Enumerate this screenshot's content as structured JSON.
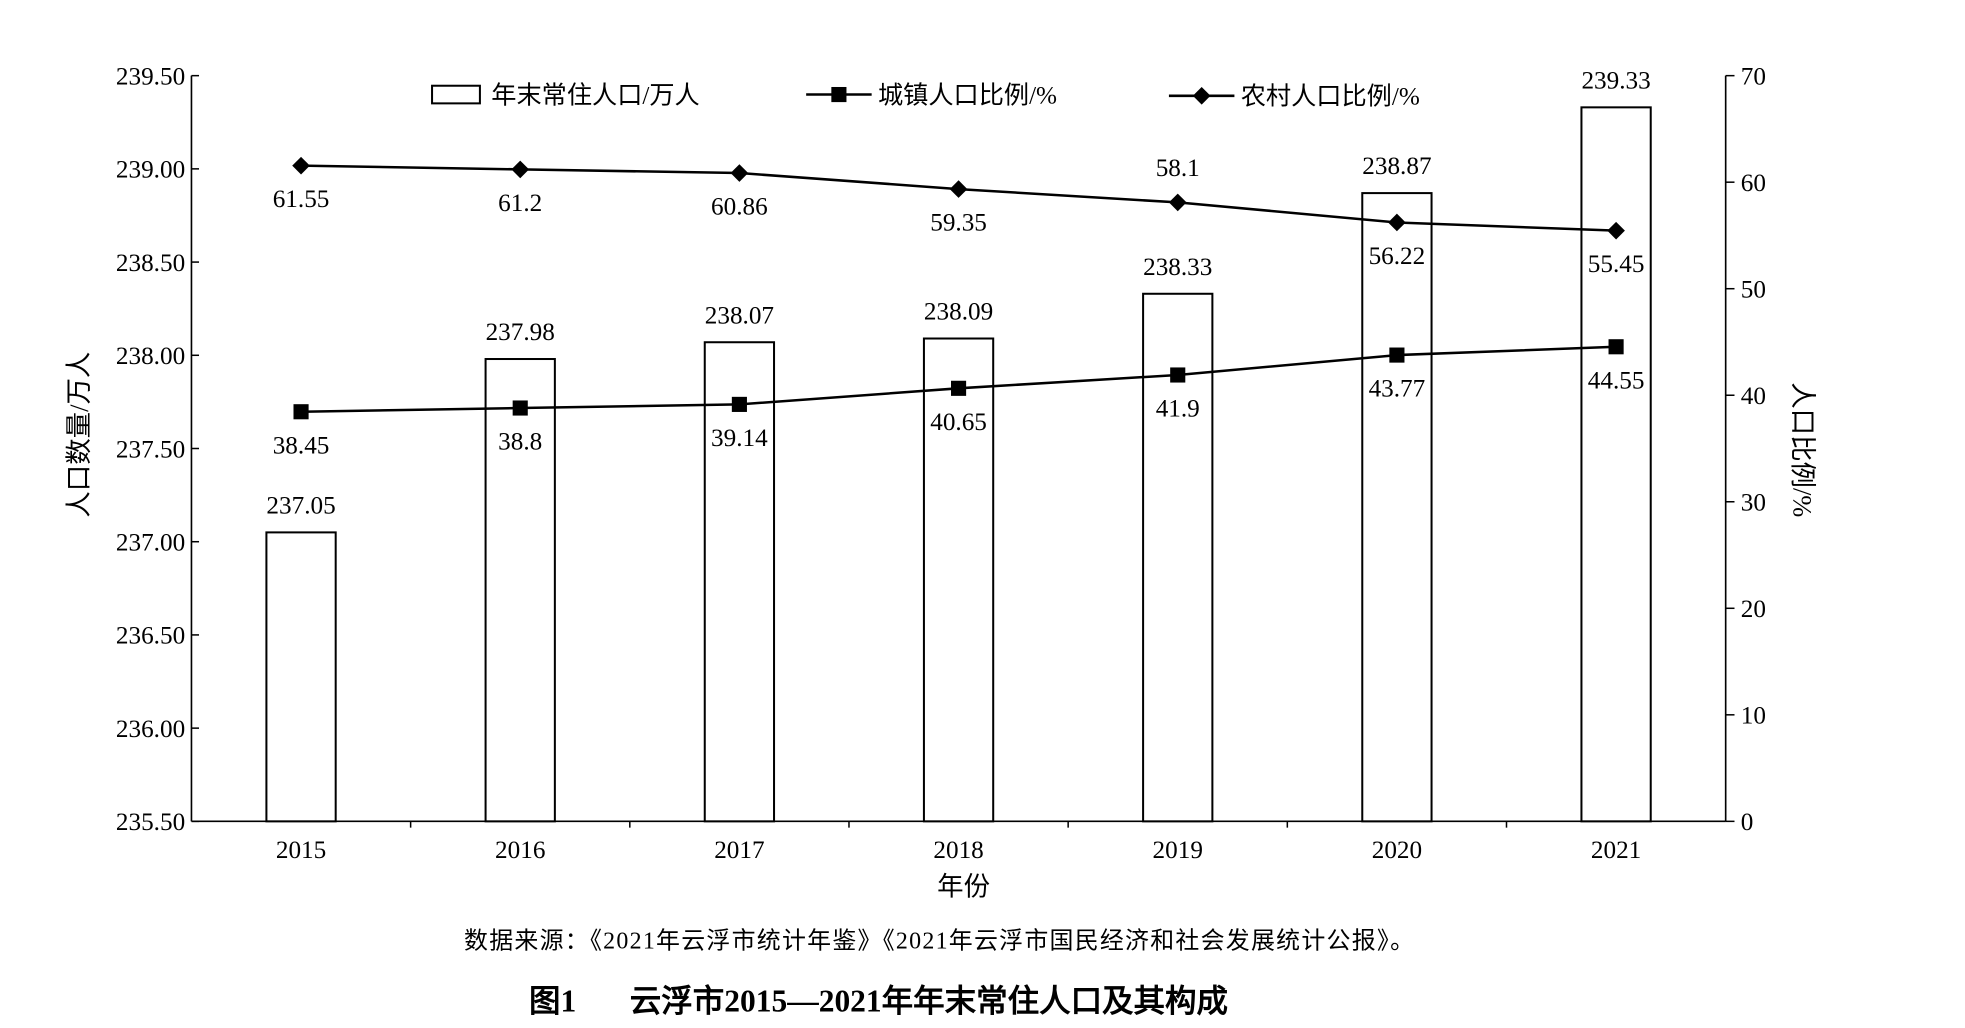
{
  "chart_data": {
    "type": "bar",
    "figure_number": "图1",
    "title": "云浮市2015—2021年年末常住人口及其构成",
    "source": "数据来源：《2021年云浮市统计年鉴》《2021年云浮市国民经济和社会发展统计公报》。",
    "categories": [
      "2015",
      "2016",
      "2017",
      "2018",
      "2019",
      "2020",
      "2021"
    ],
    "xlabel": "年份",
    "ylabel": "人口数量/万人",
    "ylabel_right": "人口比例/%",
    "ylim": [
      235.5,
      239.5
    ],
    "yticks": [
      "235.50",
      "236.00",
      "236.50",
      "237.00",
      "237.50",
      "238.00",
      "238.50",
      "239.00",
      "239.50"
    ],
    "ylim_right": [
      0,
      70
    ],
    "yticks_right": [
      "0",
      "10",
      "20",
      "30",
      "40",
      "50",
      "60",
      "70"
    ],
    "grid": false,
    "legend_placement": "top",
    "colors": {
      "line": "#000000",
      "bar_fill": "#ffffff",
      "bar_stroke": "#000000"
    },
    "series": [
      {
        "name": "年末常住人口/万人",
        "type": "bar",
        "axis": "left",
        "values": [
          237.05,
          237.98,
          238.07,
          238.09,
          238.33,
          238.87,
          239.33
        ]
      },
      {
        "name": "城镇人口比例/%",
        "type": "line",
        "marker": "square",
        "axis": "right",
        "values": [
          38.45,
          38.8,
          39.14,
          40.65,
          41.9,
          43.77,
          44.55
        ]
      },
      {
        "name": "农村人口比例/%",
        "type": "line",
        "marker": "diamond",
        "axis": "right",
        "values": [
          61.55,
          61.2,
          60.86,
          59.35,
          58.1,
          56.22,
          55.45
        ]
      }
    ]
  }
}
